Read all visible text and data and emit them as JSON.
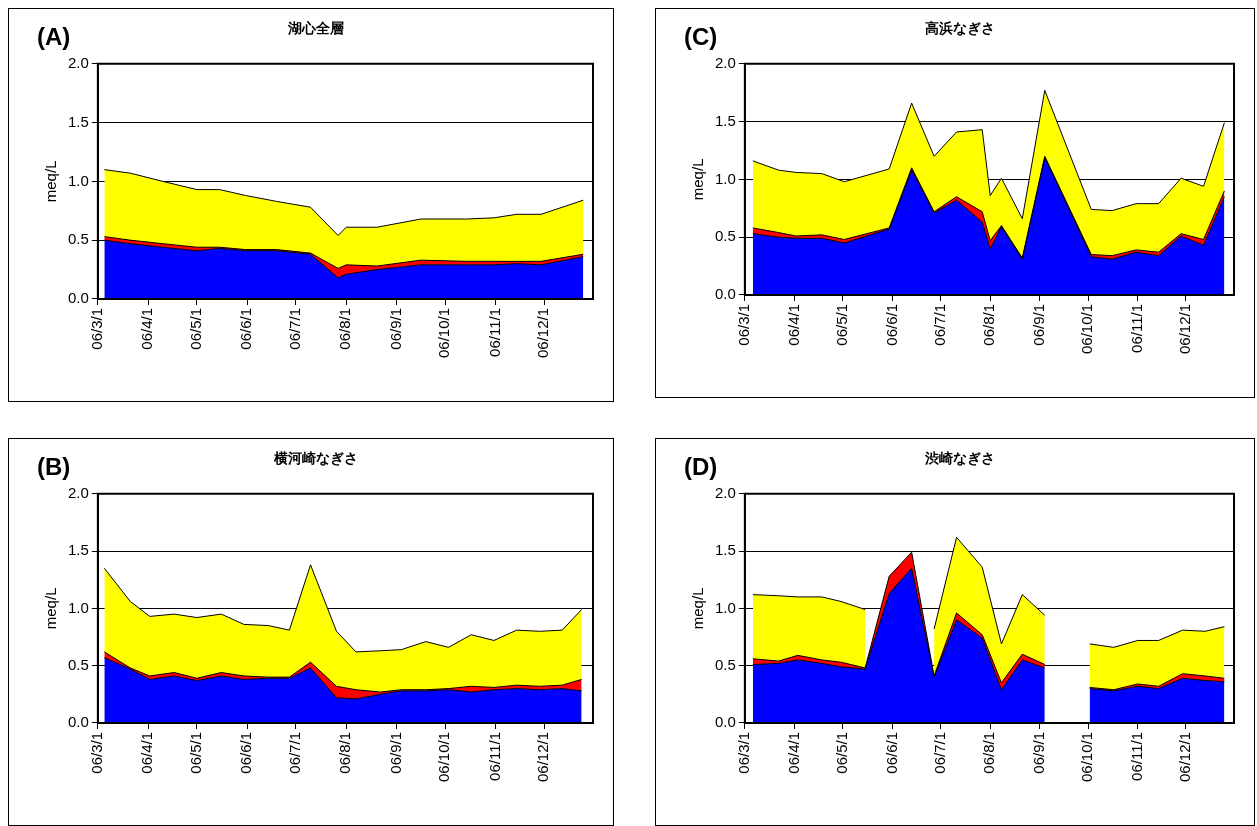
{
  "chart_data": [
    {
      "type": "area",
      "title": "湖心全層",
      "ylabel": "meq/L",
      "annotations": [
        "(A)"
      ],
      "stacked": true,
      "grid": "y",
      "legend": false,
      "x": [
        "--03-05",
        "--03-21",
        "--04-10",
        "--05-01",
        "--05-15",
        "--05-31",
        "--06-19",
        "--07-10",
        "--07-27",
        "--08-01",
        "--08-20",
        "--09-16",
        "--10-14",
        "--10-31",
        "--11-14",
        "--11-29",
        "--12-25"
      ],
      "xlim": [
        "--03-01",
        "--12-31"
      ],
      "xticks": [
        {
          "value": "--03-01",
          "label": "06/3/1"
        },
        {
          "value": "--04-01",
          "label": "06/4/1"
        },
        {
          "value": "--05-01",
          "label": "06/5/1"
        },
        {
          "value": "--06-01",
          "label": "06/6/1"
        },
        {
          "value": "--07-01",
          "label": "06/7/1"
        },
        {
          "value": "--08-01",
          "label": "06/8/1"
        },
        {
          "value": "--09-01",
          "label": "06/9/1"
        },
        {
          "value": "--10-01",
          "label": "06/10/1"
        },
        {
          "value": "--11-01",
          "label": "06/11/1"
        },
        {
          "value": "--12-01",
          "label": "06/12/1"
        }
      ],
      "ylim": [
        0,
        2
      ],
      "yticks": [
        {
          "value": 0,
          "label": "0.0"
        },
        {
          "value": 0.5,
          "label": "0.5"
        },
        {
          "value": 1,
          "label": "1.0"
        },
        {
          "value": 1.5,
          "label": "1.5"
        },
        {
          "value": 2,
          "label": "2.0"
        }
      ],
      "series": [
        {
          "color": "#0000ff",
          "values": [
            0.5,
            0.47,
            0.44,
            0.41,
            0.43,
            0.41,
            0.41,
            0.38,
            0.18,
            0.21,
            0.25,
            0.29,
            0.29,
            0.29,
            0.3,
            0.29,
            0.36
          ]
        },
        {
          "color": "#ff0000",
          "values": [
            0.03,
            0.03,
            0.03,
            0.03,
            0.01,
            0.01,
            0.01,
            0.01,
            0.08,
            0.08,
            0.03,
            0.04,
            0.03,
            0.03,
            0.02,
            0.03,
            0.02
          ]
        },
        {
          "color": "#ffff00",
          "values": [
            0.57,
            0.57,
            0.53,
            0.49,
            0.49,
            0.46,
            0.41,
            0.39,
            0.28,
            0.32,
            0.33,
            0.35,
            0.36,
            0.37,
            0.4,
            0.4,
            0.46
          ]
        }
      ]
    },
    {
      "type": "area",
      "title": "高浜なぎさ",
      "ylabel": "meq/L",
      "annotations": [
        "(C)"
      ],
      "stacked": true,
      "grid": "y",
      "legend": false,
      "x": [
        "--03-06",
        "--03-22",
        "--04-02",
        "--04-18",
        "--05-02",
        "--05-30",
        "--06-13",
        "--06-27",
        "--07-11",
        "--07-27",
        "--08-01",
        "--08-08",
        "--08-21",
        "--09-04",
        "--10-03",
        "--10-16",
        "--10-31",
        "--11-14",
        "--11-28",
        "--12-12",
        "--12-25"
      ],
      "xlim": [
        "--03-01",
        "--12-31"
      ],
      "xticks": [
        {
          "value": "--03-01",
          "label": "06/3/1"
        },
        {
          "value": "--04-01",
          "label": "06/4/1"
        },
        {
          "value": "--05-01",
          "label": "06/5/1"
        },
        {
          "value": "--06-01",
          "label": "06/6/1"
        },
        {
          "value": "--07-01",
          "label": "06/7/1"
        },
        {
          "value": "--08-01",
          "label": "06/8/1"
        },
        {
          "value": "--09-01",
          "label": "06/9/1"
        },
        {
          "value": "--10-01",
          "label": "06/10/1"
        },
        {
          "value": "--11-01",
          "label": "06/11/1"
        },
        {
          "value": "--12-01",
          "label": "06/12/1"
        }
      ],
      "ylim": [
        0,
        2
      ],
      "yticks": [
        {
          "value": 0,
          "label": "0.0"
        },
        {
          "value": 0.5,
          "label": "0.5"
        },
        {
          "value": 1,
          "label": "1.0"
        },
        {
          "value": 1.5,
          "label": "1.5"
        },
        {
          "value": 2,
          "label": "2.0"
        }
      ],
      "series": [
        {
          "color": "#0000ff",
          "values": [
            0.53,
            0.5,
            0.49,
            0.49,
            0.45,
            0.57,
            1.08,
            0.71,
            0.82,
            0.63,
            0.4,
            0.59,
            0.31,
            1.19,
            0.33,
            0.31,
            0.37,
            0.34,
            0.51,
            0.43,
            0.85
          ]
        },
        {
          "color": "#ff0000",
          "values": [
            0.05,
            0.04,
            0.02,
            0.03,
            0.03,
            0.01,
            0.02,
            0.01,
            0.03,
            0.09,
            0.07,
            0.01,
            0.01,
            0.01,
            0.02,
            0.03,
            0.02,
            0.03,
            0.02,
            0.05,
            0.05
          ]
        },
        {
          "color": "#ffff00",
          "values": [
            0.58,
            0.54,
            0.55,
            0.53,
            0.5,
            0.51,
            0.56,
            0.48,
            0.56,
            0.71,
            0.39,
            0.41,
            0.34,
            0.57,
            0.39,
            0.39,
            0.4,
            0.42,
            0.48,
            0.46,
            0.59
          ]
        }
      ]
    },
    {
      "type": "area",
      "title": "横河崎なぎさ",
      "ylabel": "meq/L",
      "annotations": [
        "(B)"
      ],
      "stacked": true,
      "grid": "y",
      "legend": false,
      "x": [
        "--03-05",
        "--03-21",
        "--04-02",
        "--04-17",
        "--05-01",
        "--05-16",
        "--05-30",
        "--06-14",
        "--06-27",
        "--07-10",
        "--07-26",
        "--08-07",
        "--08-22",
        "--09-04",
        "--09-19",
        "--10-03",
        "--10-17",
        "--10-31",
        "--11-14",
        "--11-28",
        "--12-12",
        "--12-24"
      ],
      "xlim": [
        "--03-01",
        "--12-31"
      ],
      "xticks": [
        {
          "value": "--03-01",
          "label": "06/3/1"
        },
        {
          "value": "--04-01",
          "label": "06/4/1"
        },
        {
          "value": "--05-01",
          "label": "06/5/1"
        },
        {
          "value": "--06-01",
          "label": "06/6/1"
        },
        {
          "value": "--07-01",
          "label": "06/7/1"
        },
        {
          "value": "--08-01",
          "label": "06/8/1"
        },
        {
          "value": "--09-01",
          "label": "06/9/1"
        },
        {
          "value": "--10-01",
          "label": "06/10/1"
        },
        {
          "value": "--11-01",
          "label": "06/11/1"
        },
        {
          "value": "--12-01",
          "label": "06/12/1"
        }
      ],
      "ylim": [
        0,
        2
      ],
      "yticks": [
        {
          "value": 0,
          "label": "0.0"
        },
        {
          "value": 0.5,
          "label": "0.5"
        },
        {
          "value": 1,
          "label": "1.0"
        },
        {
          "value": 1.5,
          "label": "1.5"
        },
        {
          "value": 2,
          "label": "2.0"
        }
      ],
      "series": [
        {
          "color": "#0000ff",
          "values": [
            0.57,
            0.47,
            0.38,
            0.41,
            0.37,
            0.41,
            0.38,
            0.39,
            0.39,
            0.48,
            0.22,
            0.21,
            0.25,
            0.28,
            0.28,
            0.29,
            0.27,
            0.29,
            0.3,
            0.29,
            0.3,
            0.28
          ]
        },
        {
          "color": "#ff0000",
          "values": [
            0.05,
            0.01,
            0.03,
            0.03,
            0.02,
            0.03,
            0.03,
            0.01,
            0.01,
            0.05,
            0.1,
            0.08,
            0.02,
            0.01,
            0.01,
            0.01,
            0.05,
            0.02,
            0.03,
            0.03,
            0.03,
            0.1
          ]
        },
        {
          "color": "#ffff00",
          "values": [
            0.73,
            0.58,
            0.52,
            0.51,
            0.53,
            0.51,
            0.45,
            0.45,
            0.41,
            0.85,
            0.48,
            0.33,
            0.36,
            0.35,
            0.42,
            0.36,
            0.45,
            0.41,
            0.48,
            0.48,
            0.48,
            0.61
          ]
        }
      ]
    },
    {
      "type": "area",
      "title": "渋崎なぎさ",
      "ylabel": "meq/L",
      "annotations": [
        "(D)"
      ],
      "stacked": true,
      "grid": "y",
      "legend": false,
      "x": [
        "--03-06",
        "--03-22",
        "--04-03",
        "--04-18",
        "--04-30",
        "--05-15",
        "--05-30",
        "--06-13",
        "--06-27",
        "--07-11",
        "--07-27",
        "--08-08",
        "--08-21",
        "--09-04",
        "--09-18",
        "--10-02",
        "--10-17",
        "--11-01",
        "--11-14",
        "--11-29",
        "--12-13",
        "--12-25"
      ],
      "xlim": [
        "--03-01",
        "--12-31"
      ],
      "xticks": [
        {
          "value": "--03-01",
          "label": "06/3/1"
        },
        {
          "value": "--04-01",
          "label": "06/4/1"
        },
        {
          "value": "--05-01",
          "label": "06/5/1"
        },
        {
          "value": "--06-01",
          "label": "06/6/1"
        },
        {
          "value": "--07-01",
          "label": "06/7/1"
        },
        {
          "value": "--08-01",
          "label": "06/8/1"
        },
        {
          "value": "--09-01",
          "label": "06/9/1"
        },
        {
          "value": "--10-01",
          "label": "06/10/1"
        },
        {
          "value": "--11-01",
          "label": "06/11/1"
        },
        {
          "value": "--12-01",
          "label": "06/12/1"
        }
      ],
      "ylim": [
        0,
        2
      ],
      "yticks": [
        {
          "value": 0,
          "label": "0.0"
        },
        {
          "value": 0.5,
          "label": "0.5"
        },
        {
          "value": 1,
          "label": "1.0"
        },
        {
          "value": 1.5,
          "label": "1.5"
        },
        {
          "value": 2,
          "label": "2.0"
        }
      ],
      "series": [
        {
          "color": "#0000ff",
          "values": [
            0.51,
            0.52,
            0.55,
            0.52,
            0.49,
            0.47,
            1.13,
            1.35,
            0.4,
            0.9,
            0.74,
            0.29,
            0.55,
            0.48,
            null,
            0.3,
            0.28,
            0.32,
            0.3,
            0.39,
            0.37,
            0.36
          ]
        },
        {
          "color": "#ff0000",
          "values": [
            0.05,
            0.02,
            0.04,
            0.03,
            0.04,
            0.01,
            0.15,
            0.14,
            0.01,
            0.06,
            0.03,
            0.06,
            0.05,
            0.03,
            null,
            0.01,
            0.01,
            0.02,
            0.02,
            0.04,
            0.04,
            0.03
          ]
        },
        {
          "color": "#ffff00",
          "values": [
            0.56,
            0.57,
            0.51,
            0.55,
            0.53,
            0.51,
            null,
            null,
            0.41,
            0.66,
            0.59,
            0.34,
            0.52,
            0.43,
            null,
            0.38,
            0.37,
            0.38,
            0.4,
            0.38,
            0.39,
            0.45
          ]
        }
      ]
    }
  ]
}
